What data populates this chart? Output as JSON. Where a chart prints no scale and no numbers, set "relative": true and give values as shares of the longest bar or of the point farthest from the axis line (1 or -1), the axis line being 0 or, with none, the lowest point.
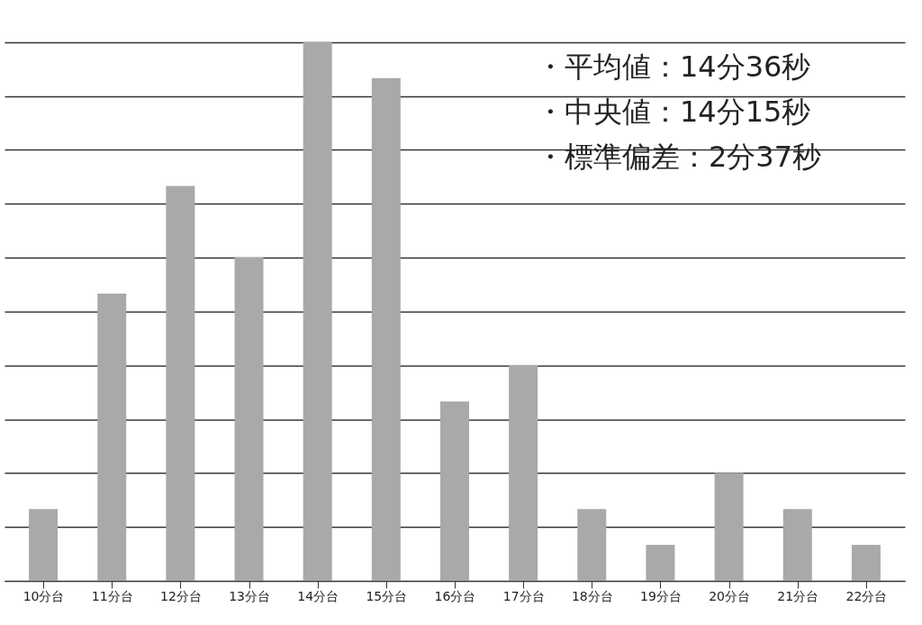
{
  "chart_data": {
    "type": "bar",
    "relative": true,
    "grid": "y",
    "categories": [
      "10分台",
      "11分台",
      "12分台",
      "13分台",
      "14分台",
      "15分台",
      "16分台",
      "17分台",
      "18分台",
      "19分台",
      "20分台",
      "21分台",
      "22分台"
    ],
    "values": [
      0.1333,
      0.5333,
      0.7333,
      0.6,
      1,
      0.9333,
      0.3333,
      0.4,
      0.1333,
      0.0667,
      0.2,
      0.1333,
      0.0667
    ],
    "color": "#a9a9a9",
    "annotations": [
      "・平均値：14分36秒",
      "・中央値：14分15秒",
      "・標準偏差：2分37秒"
    ]
  }
}
